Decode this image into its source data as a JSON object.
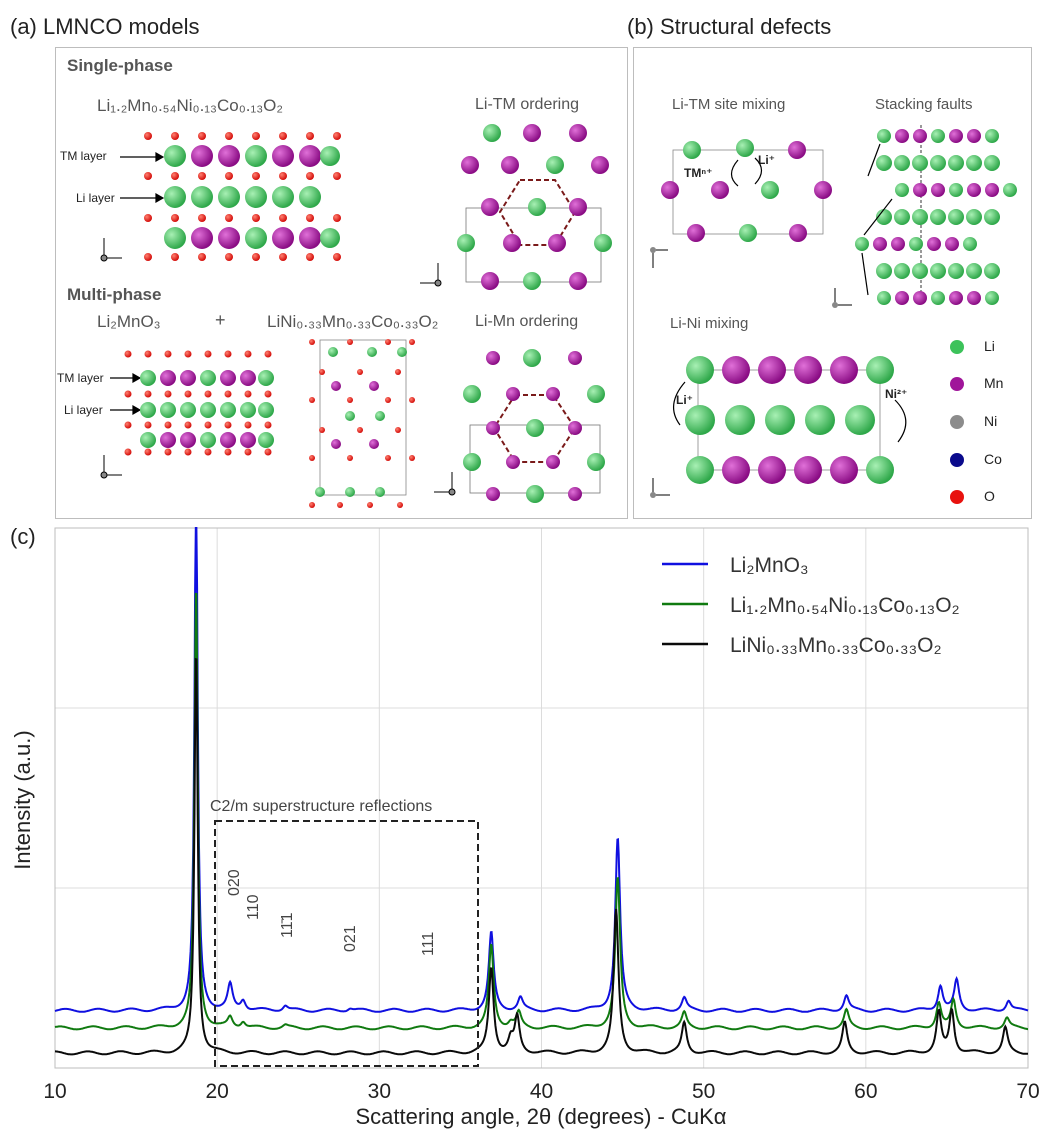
{
  "panel_a": {
    "title": "(a) LMNCO models",
    "single_phase": "Single-phase",
    "multi_phase": "Multi-phase",
    "formula_single": "Li₁.₂Mn₀.₅₄Ni₀.₁₃Co₀.₁₃O₂",
    "li_tm_ordering": "Li-TM ordering",
    "li_mn_ordering": "Li-Mn ordering",
    "tm_layer": "TM layer",
    "li_layer": "Li layer",
    "formula_li2mno3": "Li₂MnO₃",
    "plus": "+",
    "formula_nmc": "LiNi₀.₃₃Mn₀.₃₃Co₀.₃₃O₂"
  },
  "panel_b": {
    "title": "(b) Structural defects",
    "site_mixing": "Li-TM site mixing",
    "stacking_faults": "Stacking faults",
    "li_ni_mixing": "Li-Ni mixing",
    "tm_ion": "TMⁿ⁺",
    "li_ion": "Li⁺",
    "ni_ion": "Ni²⁺",
    "atoms": [
      {
        "label": "Li",
        "color": "#3cc25a"
      },
      {
        "label": "Mn",
        "color": "#a0159a"
      },
      {
        "label": "Ni",
        "color": "#8c8c8c"
      },
      {
        "label": "Co",
        "color": "#0a0a8c"
      },
      {
        "label": "O",
        "color": "#e8120e"
      }
    ]
  },
  "panel_c": {
    "title": "(c)",
    "box_label": "C2/m superstructure reflections",
    "reflections": [
      "020",
      "110",
      "11̄1",
      "021",
      "111"
    ]
  },
  "chart_data": {
    "type": "line",
    "xlabel": "Scattering angle, 2θ (degrees) - CuKα",
    "ylabel": "Intensity (a.u.)",
    "xlim": [
      10,
      70
    ],
    "xticks": [
      10,
      20,
      30,
      40,
      50,
      60,
      70
    ],
    "grid": true,
    "legend_position": "top-right",
    "series": [
      {
        "name": "Li₂MnO₃",
        "color": "#1010e0",
        "baseline": 0.19,
        "peaks": [
          [
            18.7,
            2.1
          ],
          [
            20.8,
            0.1
          ],
          [
            21.6,
            0.04
          ],
          [
            24.2,
            0.02
          ],
          [
            28.2,
            0.01
          ],
          [
            36.9,
            0.31
          ],
          [
            38.7,
            0.05
          ],
          [
            44.7,
            0.69
          ],
          [
            48.8,
            0.05
          ],
          [
            58.8,
            0.06
          ],
          [
            64.6,
            0.1
          ],
          [
            65.6,
            0.12
          ],
          [
            68.8,
            0.04
          ]
        ]
      },
      {
        "name": "Li₁.₂Mn₀.₅₄Ni₀.₁₃Co₀.₁₃O₂",
        "color": "#107a10",
        "baseline": 0.12,
        "peaks": [
          [
            18.7,
            1.78
          ],
          [
            20.8,
            0.04
          ],
          [
            21.6,
            0.025
          ],
          [
            24.2,
            0.01
          ],
          [
            36.9,
            0.33
          ],
          [
            38.1,
            0.02
          ],
          [
            38.6,
            0.06
          ],
          [
            44.7,
            0.6
          ],
          [
            48.8,
            0.06
          ],
          [
            58.8,
            0.07
          ],
          [
            64.5,
            0.1
          ],
          [
            65.4,
            0.11
          ],
          [
            68.7,
            0.04
          ]
        ]
      },
      {
        "name": "LiNi₀.₃₃Mn₀.₃₃Co₀.₃₃O₂",
        "color": "#0a0a0a",
        "baseline": 0.02,
        "peaks": [
          [
            18.7,
            1.62
          ],
          [
            36.9,
            0.34
          ],
          [
            38.1,
            0.05
          ],
          [
            38.5,
            0.14
          ],
          [
            44.6,
            0.57
          ],
          [
            48.8,
            0.12
          ],
          [
            58.7,
            0.12
          ],
          [
            64.5,
            0.16
          ],
          [
            65.3,
            0.17
          ],
          [
            68.6,
            0.1
          ]
        ]
      }
    ]
  }
}
